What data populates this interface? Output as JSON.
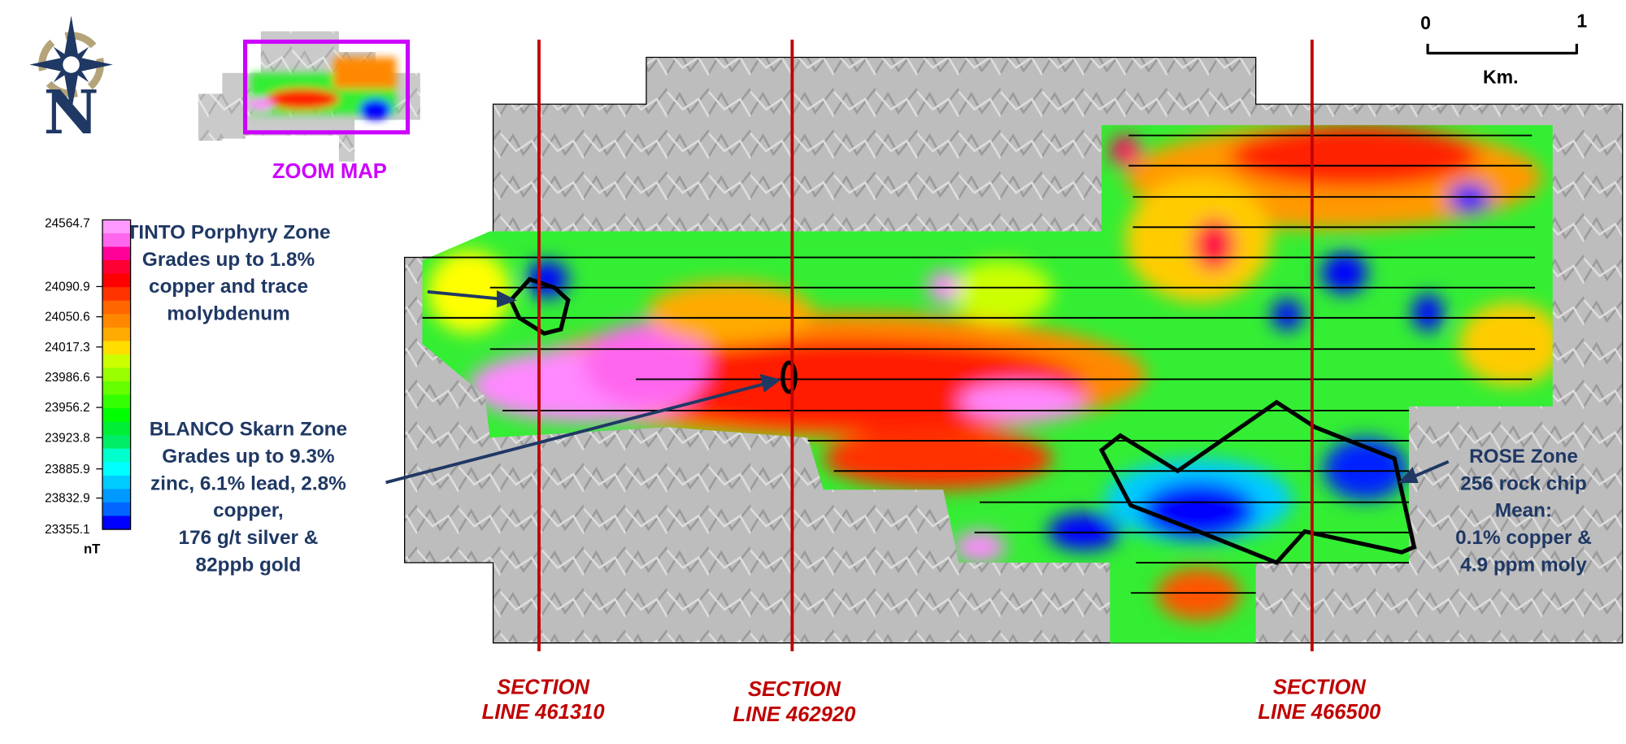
{
  "compass": {
    "letter": "N",
    "icon": "compass-rose-icon",
    "colors": {
      "navy": "#1f3864",
      "gold": "#b5a47a"
    }
  },
  "zoom_map": {
    "label": "ZOOM MAP",
    "color": "#cc00ff"
  },
  "scale_bar": {
    "start": "0",
    "end": "1",
    "unit": "Km."
  },
  "legend": {
    "unit": "nT",
    "ticks": [
      "24564.7",
      "24090.9",
      "24050.6",
      "24017.3",
      "23986.6",
      "23956.2",
      "23923.8",
      "23885.9",
      "23832.9",
      "23355.1"
    ],
    "colors": [
      "#ff99ff",
      "#ff66ee",
      "#ff0099",
      "#ff0033",
      "#ff0000",
      "#ff3300",
      "#ff6600",
      "#ff8800",
      "#ffaa00",
      "#ffdd00",
      "#ccff00",
      "#99ff00",
      "#66ff00",
      "#33ff00",
      "#00ff00",
      "#00ee33",
      "#00ee66",
      "#00ffcc",
      "#00ffff",
      "#00ccff",
      "#0099ff",
      "#0066ff",
      "#0000ff"
    ]
  },
  "annotations": {
    "tinto": {
      "lines": [
        "TINTO Porphyry Zone",
        "Grades up to 1.8%",
        "copper and trace",
        "molybdenum"
      ]
    },
    "blanco": {
      "lines": [
        "BLANCO Skarn Zone",
        "Grades up to 9.3%",
        "zinc, 6.1% lead, 2.8%",
        "copper,",
        "176 g/t silver &",
        "82ppb gold"
      ]
    },
    "rose": {
      "lines": [
        "ROSE Zone",
        "256 rock chip",
        "Mean:",
        "0.1% copper &",
        "4.9 ppm moly"
      ]
    }
  },
  "sections": [
    {
      "line1": "SECTION",
      "line2": "LINE 461310"
    },
    {
      "line1": "SECTION",
      "line2": "LINE 462920"
    },
    {
      "line1": "SECTION",
      "line2": "LINE 466500"
    }
  ],
  "colors": {
    "section_line": "#c00000",
    "label_text": "#1f3864",
    "imagery_gray": "#b8b8b8"
  }
}
